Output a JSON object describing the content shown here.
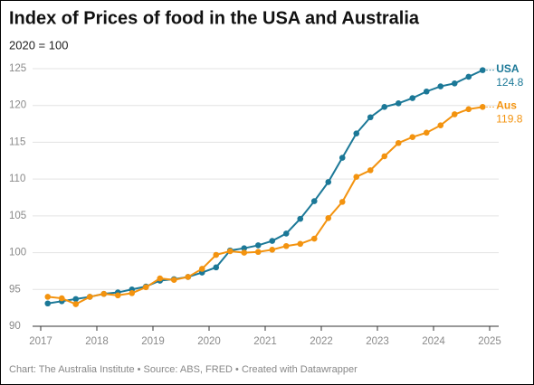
{
  "chart_data": {
    "type": "line",
    "title": "Index of Prices of food in the USA and Australia",
    "subtitle": "2020 = 100",
    "source": "Chart: The Australia Institute • Source: ABS, FRED • Created with Datawrapper",
    "x": [
      2017.125,
      2017.375,
      2017.625,
      2017.875,
      2018.125,
      2018.375,
      2018.625,
      2018.875,
      2019.125,
      2019.375,
      2019.625,
      2019.875,
      2020.125,
      2020.375,
      2020.625,
      2020.875,
      2021.125,
      2021.375,
      2021.625,
      2021.875,
      2022.125,
      2022.375,
      2022.625,
      2022.875,
      2023.125,
      2023.375,
      2023.625,
      2023.875,
      2024.125,
      2024.375,
      2024.625,
      2024.875
    ],
    "series": [
      {
        "name": "USA",
        "color": "#1b7897",
        "values": [
          93.1,
          93.4,
          93.7,
          94.0,
          94.4,
          94.6,
          95.0,
          95.4,
          96.2,
          96.4,
          96.7,
          97.3,
          98.0,
          100.3,
          100.6,
          101.0,
          101.6,
          102.6,
          104.6,
          107.0,
          109.6,
          112.9,
          116.2,
          118.4,
          119.8,
          120.3,
          121.0,
          121.9,
          122.6,
          123.0,
          123.9,
          124.8
        ]
      },
      {
        "name": "Aus",
        "color": "#f3930f",
        "values": [
          94.0,
          93.8,
          93.0,
          94.0,
          94.4,
          94.2,
          94.5,
          95.3,
          96.5,
          96.3,
          96.7,
          97.8,
          99.7,
          100.2,
          100.0,
          100.1,
          100.4,
          100.9,
          101.2,
          101.9,
          104.7,
          106.9,
          110.3,
          111.2,
          113.1,
          114.9,
          115.7,
          116.3,
          117.3,
          118.8,
          119.5,
          119.8
        ]
      }
    ],
    "xlim": [
      2017,
      2025
    ],
    "xticks": [
      2017,
      2018,
      2019,
      2020,
      2021,
      2022,
      2023,
      2024,
      2025
    ],
    "ylim": [
      90,
      125
    ],
    "yticks": [
      90,
      95,
      100,
      105,
      110,
      115,
      120,
      125
    ],
    "grid": true
  }
}
